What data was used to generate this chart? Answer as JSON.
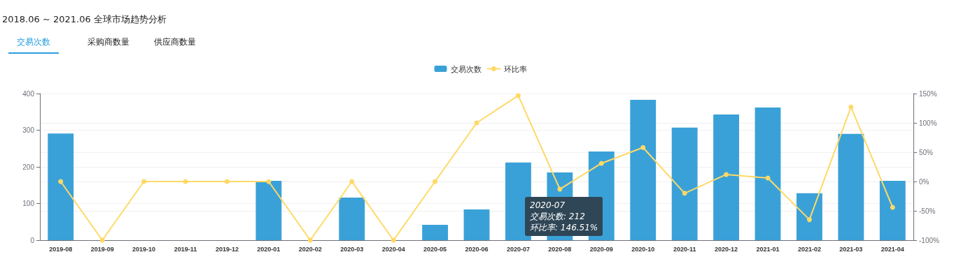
{
  "chart_data": {
    "type": "bar",
    "title": "2018.06 ~ 2021.06 全球市场趋势分析",
    "categories": [
      "2019-08",
      "2019-09",
      "2019-10",
      "2019-11",
      "2019-12",
      "2020-01",
      "2020-02",
      "2020-03",
      "2020-04",
      "2020-05",
      "2020-06",
      "2020-07",
      "2020-08",
      "2020-09",
      "2020-10",
      "2020-11",
      "2020-12",
      "2021-01",
      "2021-02",
      "2021-03",
      "2021-04"
    ],
    "series": [
      {
        "name": "交易次数",
        "color": "#3aa1d8",
        "values": [
          291,
          0,
          0,
          0,
          0,
          162,
          0,
          116,
          0,
          42,
          84,
          212,
          185,
          242,
          383,
          307,
          343,
          362,
          128,
          290,
          162
        ]
      },
      {
        "name": "环比率",
        "type": "line",
        "axis": "y2",
        "color": "#ffd966",
        "values": [
          0,
          -100,
          0,
          0,
          0,
          0,
          -100,
          0,
          -100,
          0,
          100,
          146.51,
          -13,
          31,
          58,
          -20,
          12,
          6,
          -65,
          127,
          -44
        ]
      }
    ],
    "ylim": [
      0,
      400
    ],
    "yticks": [
      0,
      100,
      200,
      300,
      400
    ],
    "y2lim": [
      -100,
      150
    ],
    "y2ticks": [
      {
        "value": -100,
        "label": "-100%"
      },
      {
        "value": -50,
        "label": "-50%"
      },
      {
        "value": 0,
        "label": "0%"
      },
      {
        "value": 50,
        "label": "50%"
      },
      {
        "value": 100,
        "label": "100%"
      },
      {
        "value": 150,
        "label": "150%"
      }
    ],
    "grid": "y",
    "legend": "top",
    "marker": "circle",
    "annotations": [
      "交易次数",
      "采购商数量",
      "供应商数量",
      "2020-07\n交易次数: 212\n环比率: 146.51%"
    ]
  }
}
